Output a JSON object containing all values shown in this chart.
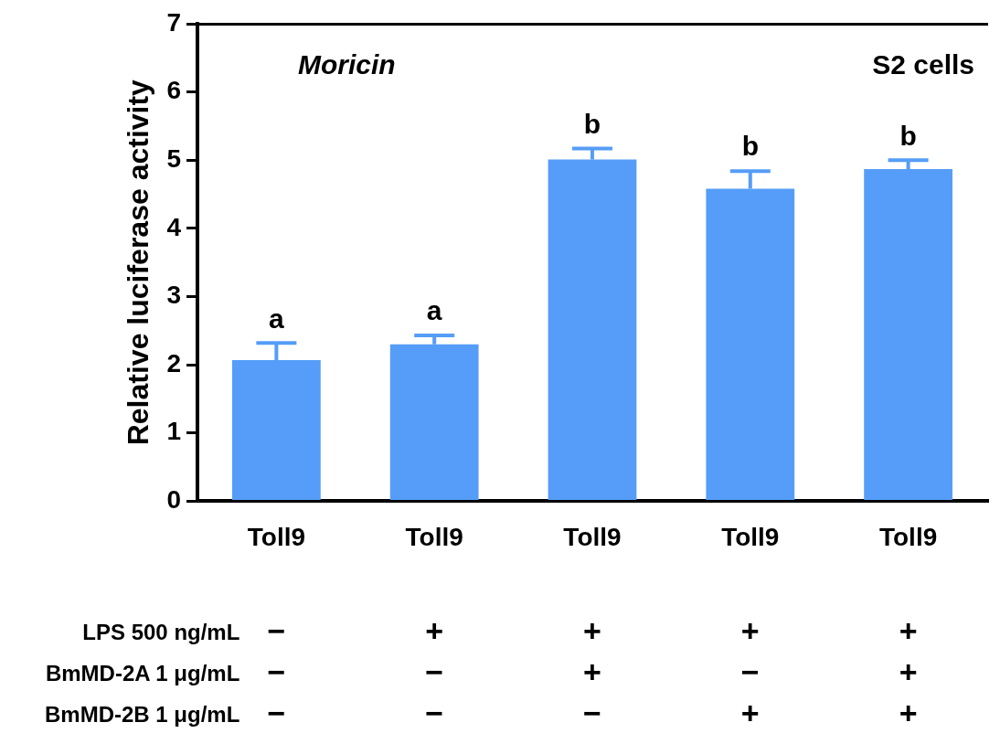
{
  "chart_data": {
    "type": "bar",
    "title": "Moricin",
    "subtitle": "S2 cells",
    "ylabel": "Relative luciferase activity",
    "categories": [
      "Toll9",
      "Toll9",
      "Toll9",
      "Toll9",
      "Toll9"
    ],
    "values": [
      2.07,
      2.3,
      5.01,
      4.58,
      4.87
    ],
    "color": "#559df8",
    "errors": [
      [
        2.07,
        2.32
      ],
      [
        2.3,
        2.43
      ],
      [
        5.01,
        5.17
      ],
      [
        4.58,
        4.84
      ],
      [
        4.87,
        5.0
      ]
    ],
    "value_labels": [
      "a",
      "a",
      "b",
      "b",
      "b"
    ],
    "ylim": [
      0,
      7
    ],
    "yticks": [
      0,
      1,
      2,
      3,
      4,
      5,
      6,
      7
    ],
    "grid": false,
    "legend": false,
    "annotations": [
      "LPS 500 ng/mL",
      "−",
      "+",
      "+",
      "+",
      "+",
      "BmMD-2A 1 μg/mL",
      "−",
      "−",
      "+",
      "−",
      "+",
      "BmMD-2B 1 μg/mL",
      "−",
      "−",
      "−",
      "+",
      "+"
    ]
  }
}
